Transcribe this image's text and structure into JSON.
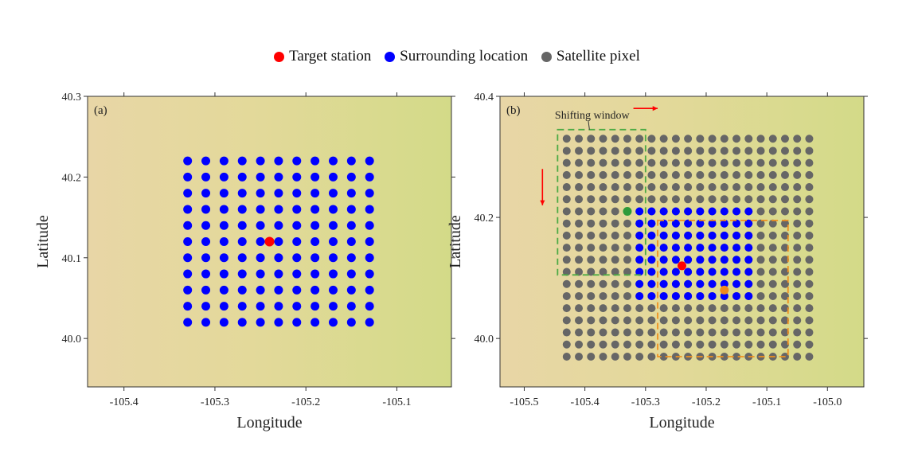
{
  "legend": {
    "items": [
      {
        "label": "Target station",
        "color": "#ff0000"
      },
      {
        "label": "Surrounding location",
        "color": "#0000ff"
      },
      {
        "label": "Satellite pixel",
        "color": "#666666"
      }
    ]
  },
  "chart_data": [
    {
      "type": "scatter",
      "panel_label": "(a)",
      "xlabel": "Longitude",
      "ylabel": "Latitude",
      "xlim": [
        -105.44,
        -105.04
      ],
      "ylim": [
        39.94,
        40.3
      ],
      "xticks": [
        -105.4,
        -105.3,
        -105.2,
        -105.1
      ],
      "xtick_labels": [
        "-105.4",
        "-105.3",
        "-105.2",
        "-105.1"
      ],
      "yticks": [
        40.0,
        40.1,
        40.2,
        40.3
      ],
      "ytick_labels": [
        "40.0",
        "40.1",
        "40.2",
        "40.3"
      ],
      "grids": [
        {
          "series": "Surrounding location",
          "x_start": -105.33,
          "x_end": -105.13,
          "y_start": 40.02,
          "y_end": 40.22,
          "step": 0.02,
          "color": "#0000ff"
        }
      ],
      "points": [
        {
          "series": "Target station",
          "x": -105.24,
          "y": 40.12,
          "color": "#ff0000"
        }
      ],
      "background": [
        "#e8d6a6",
        "#d3da88"
      ]
    },
    {
      "type": "scatter",
      "panel_label": "(b)",
      "xlabel": "Longitude",
      "ylabel": "Latitude",
      "xlim": [
        -105.54,
        -104.94
      ],
      "ylim": [
        39.92,
        40.4
      ],
      "xticks": [
        -105.5,
        -105.4,
        -105.3,
        -105.2,
        -105.1,
        -105.0
      ],
      "xtick_labels": [
        "-105.5",
        "-105.4",
        "-105.3",
        "-105.2",
        "-105.1",
        "-105.0"
      ],
      "yticks": [
        40.0,
        40.2,
        40.4
      ],
      "ytick_labels": [
        "40.0",
        "40.2",
        "40.4"
      ],
      "grids": [
        {
          "series": "Satellite pixel",
          "x_start": -105.43,
          "x_end": -105.03,
          "y_start": 39.97,
          "y_end": 40.33,
          "step": 0.02,
          "color": "#666666"
        },
        {
          "series": "Surrounding location",
          "x_start": -105.31,
          "x_end": -105.13,
          "y_start": 40.07,
          "y_end": 40.21,
          "step": 0.02,
          "color": "#0000ff"
        }
      ],
      "points": [
        {
          "series": "Target station",
          "x": -105.24,
          "y": 40.12,
          "color": "#ff0000"
        },
        {
          "series": "Shifted window corner",
          "x": -105.33,
          "y": 40.21,
          "color": "#2e9a3a"
        },
        {
          "series": "Shifted window center",
          "x": -105.17,
          "y": 40.08,
          "color": "#f08a1c"
        }
      ],
      "windows": [
        {
          "x0": -105.445,
          "x1": -105.3,
          "y0": 40.105,
          "y1": 40.345,
          "color": "#4caa44"
        },
        {
          "x0": -105.28,
          "x1": -105.065,
          "y0": 39.97,
          "y1": 40.195,
          "color": "#f0901e"
        }
      ],
      "annotation": {
        "text": "Shifting window",
        "x": -105.46,
        "y": 40.37
      },
      "arrows": [
        {
          "x0": -105.32,
          "y0": 40.38,
          "x1": -105.28,
          "y1": 40.38,
          "color": "#ff0000"
        },
        {
          "x0": -105.47,
          "y0": 40.28,
          "x1": -105.47,
          "y1": 40.22,
          "color": "#ff0000"
        }
      ],
      "background": [
        "#e8d6a6",
        "#d3da88"
      ]
    }
  ]
}
